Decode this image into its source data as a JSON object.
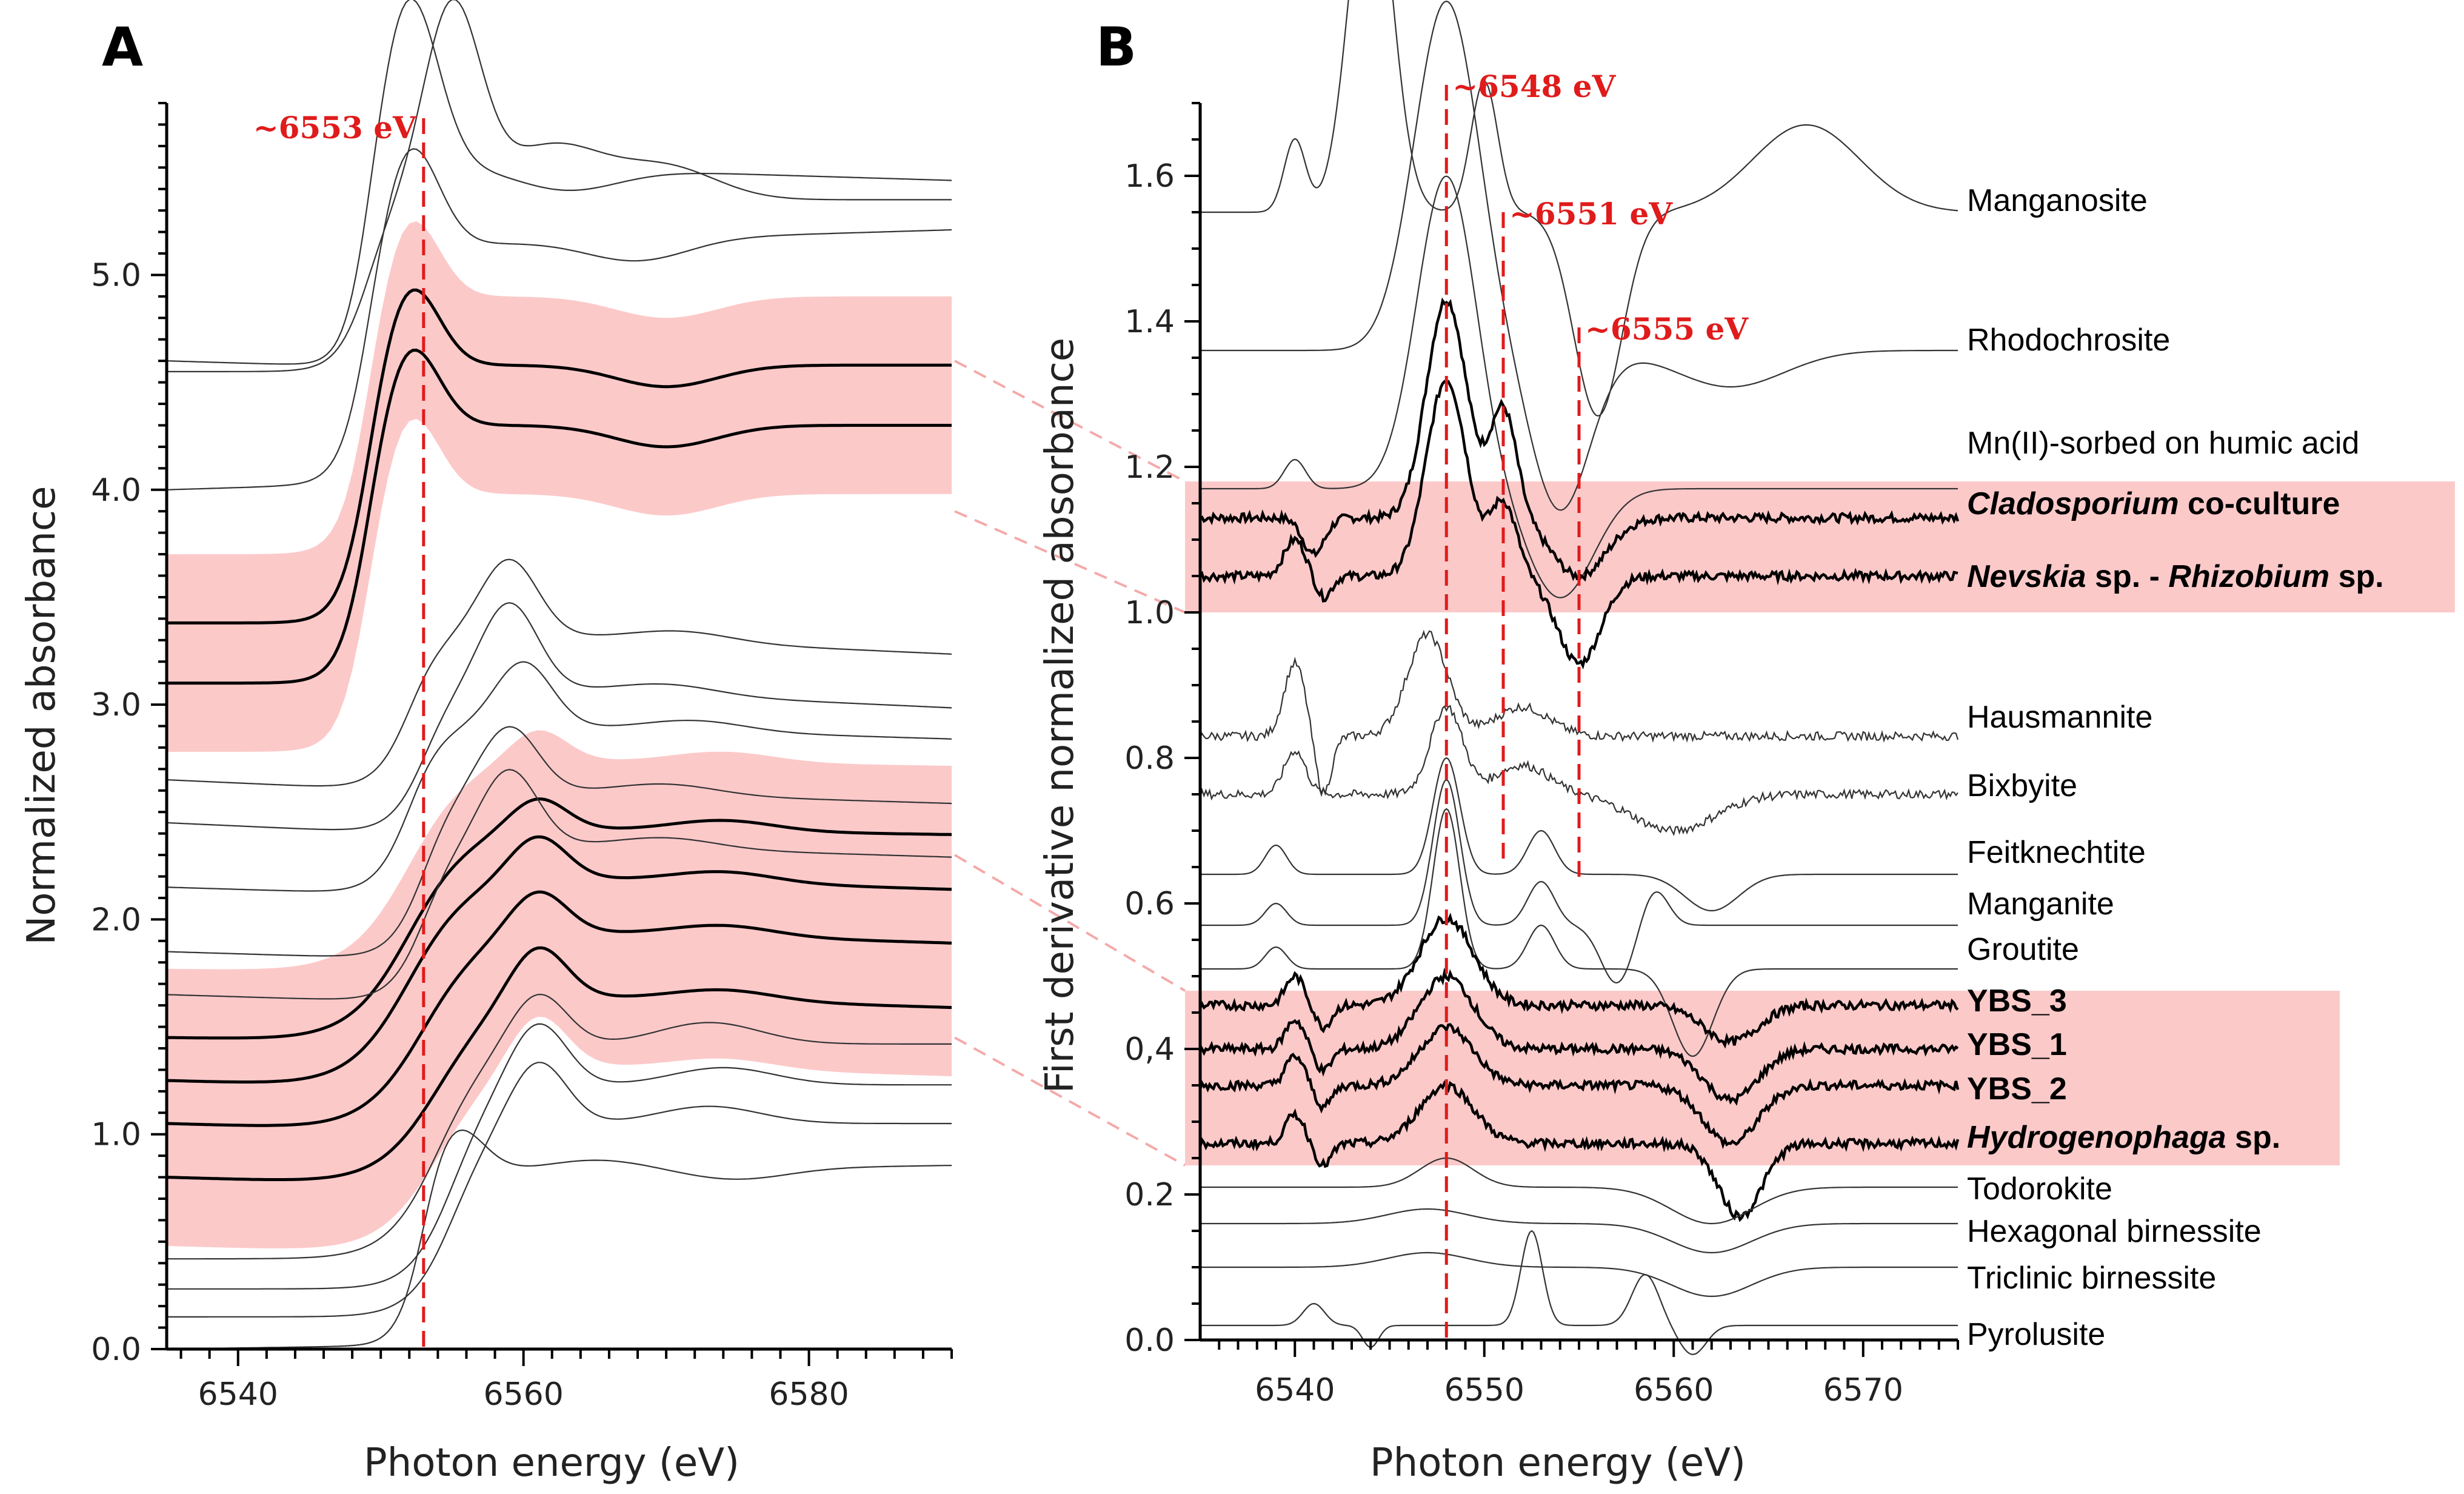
{
  "colors": {
    "band": "#fcc9c9",
    "reference": "#e01b1b",
    "connector": "#f4aaaa",
    "sample": "#000000",
    "standard": "#333333"
  },
  "chart_data": [
    {
      "panel": "A",
      "type": "line",
      "xlabel": "Photon energy (eV)",
      "ylabel": "Normalized absorbance",
      "xlim": [
        6535,
        6590
      ],
      "ylim": [
        0.0,
        5.8
      ],
      "xticks": [
        6540,
        6560,
        6580
      ],
      "xtick_labels": [
        "6540",
        "6560",
        "6580"
      ],
      "yticks": [
        0.0,
        1.0,
        2.0,
        3.0,
        4.0,
        5.0
      ],
      "ytick_labels": [
        "0.0",
        "1.0",
        "2.0",
        "3.0",
        "4.0",
        "5.0"
      ],
      "reference_line": {
        "x": 6553,
        "label": "~6553 eV"
      },
      "series": [
        {
          "name": "Pyrolusite",
          "kind": "standard",
          "offset": 0.0,
          "edge": 6553,
          "width": 1.5,
          "height": 0.8,
          "wl_pos": 6555,
          "wl": 0.25,
          "post": [
            [
              6565,
              0.05
            ],
            [
              6575,
              -0.05
            ]
          ],
          "slope": 0.001
        },
        {
          "name": "Triclinic birnessite",
          "kind": "standard",
          "offset": 0.15,
          "edge": 6555,
          "width": 2.5,
          "height": 0.9,
          "wl_pos": 6561,
          "wl": 0.3,
          "post": [
            [
              6573,
              0.08
            ]
          ],
          "slope": 0.0
        },
        {
          "name": "Hexagonal birnessite",
          "kind": "standard",
          "offset": 0.28,
          "edge": 6555,
          "width": 2.5,
          "height": 0.95,
          "wl_pos": 6561,
          "wl": 0.3,
          "post": [
            [
              6574,
              0.08
            ]
          ],
          "slope": 0.0
        },
        {
          "name": "Todorokite",
          "kind": "standard",
          "offset": 0.42,
          "edge": 6554,
          "width": 3.0,
          "height": 1.0,
          "wl_pos": 6561,
          "wl": 0.25,
          "post": [
            [
              6573,
              0.1
            ]
          ],
          "slope": 0.0
        },
        {
          "name": "Hydrogenophaga sp.",
          "kind": "sample",
          "offset": 0.8,
          "edge": 6554,
          "width": 3.5,
          "height": 0.9,
          "wl_pos": 6561,
          "wl": 0.25,
          "post": [
            [
              6574,
              0.05
            ]
          ],
          "slope": -0.002
        },
        {
          "name": "YBS_2",
          "kind": "sample",
          "offset": 1.05,
          "edge": 6553,
          "width": 3.5,
          "height": 0.95,
          "wl_pos": 6561,
          "wl": 0.2,
          "post": [
            [
              6574,
              0.05
            ]
          ],
          "slope": -0.002
        },
        {
          "name": "YBS_1",
          "kind": "sample",
          "offset": 1.25,
          "edge": 6552,
          "width": 3.5,
          "height": 1.0,
          "wl_pos": 6561,
          "wl": 0.2,
          "post": [
            [
              6574,
              0.05
            ]
          ],
          "slope": -0.002
        },
        {
          "name": "YBS_3",
          "kind": "sample",
          "offset": 1.45,
          "edge": 6552,
          "width": 3.5,
          "height": 1.0,
          "wl_pos": 6561,
          "wl": 0.15,
          "post": [
            [
              6574,
              0.05
            ]
          ],
          "slope": -0.001
        },
        {
          "name": "Groutite",
          "kind": "standard",
          "offset": 1.65,
          "edge": 6553,
          "width": 2.0,
          "height": 0.75,
          "wl_pos": 6559,
          "wl": 0.35,
          "post": [
            [
              6570,
              0.05
            ]
          ],
          "slope": -0.002
        },
        {
          "name": "Manganite",
          "kind": "standard",
          "offset": 1.85,
          "edge": 6553,
          "width": 2.0,
          "height": 0.8,
          "wl_pos": 6559,
          "wl": 0.3,
          "post": [
            [
              6570,
              0.05
            ]
          ],
          "slope": -0.002
        },
        {
          "name": "Feitknechtite",
          "kind": "standard",
          "offset": 2.15,
          "edge": 6552,
          "width": 2.0,
          "height": 0.8,
          "wl_pos": 6560,
          "wl": 0.3,
          "post": [
            [
              6572,
              0.05
            ]
          ],
          "slope": -0.002
        },
        {
          "name": "Bixbyite",
          "kind": "standard",
          "offset": 2.45,
          "edge": 6553,
          "width": 2.0,
          "height": 0.7,
          "wl_pos": 6559,
          "wl": 0.4,
          "post": [
            [
              6570,
              0.05
            ]
          ],
          "slope": -0.003
        },
        {
          "name": "Hausmannite",
          "kind": "standard",
          "offset": 2.65,
          "edge": 6552,
          "width": 2.0,
          "height": 0.75,
          "wl_pos": 6559,
          "wl": 0.35,
          "post": [
            [
              6571,
              0.05
            ]
          ],
          "slope": -0.003
        },
        {
          "name": "Nevskia sp. - Rhizobium sp.",
          "kind": "sample",
          "offset": 3.1,
          "edge": 6549,
          "width": 1.7,
          "height": 1.2,
          "wl_pos": 6552,
          "wl": 0.4,
          "post": [
            [
              6570,
              -0.1
            ]
          ],
          "slope": 0.0
        },
        {
          "name": "Cladosporium co-culture",
          "kind": "sample",
          "offset": 3.38,
          "edge": 6549,
          "width": 1.7,
          "height": 1.2,
          "wl_pos": 6552,
          "wl": 0.4,
          "post": [
            [
              6570,
              -0.1
            ]
          ],
          "slope": 0.0
        },
        {
          "name": "Mn(II)-sorbed on humic acid",
          "kind": "standard",
          "offset": 4.0,
          "edge": 6549,
          "width": 1.7,
          "height": 1.1,
          "wl_pos": 6552,
          "wl": 0.5,
          "post": [
            [
              6568,
              -0.1
            ]
          ],
          "slope": 0.002
        },
        {
          "name": "Rhodochrosite",
          "kind": "standard",
          "offset": 4.6,
          "edge": 6549,
          "width": 1.5,
          "height": 0.95,
          "wl_pos": 6552,
          "wl": 0.8,
          "post": [
            [
              6563,
              -0.1
            ]
          ],
          "slope": -0.002
        },
        {
          "name": "Manganosite",
          "kind": "standard",
          "offset": 4.55,
          "edge": 6549,
          "width": 1.8,
          "height": 0.8,
          "wl_pos": 6555,
          "wl": 0.9,
          "post": [
            [
              6562,
              0.25
            ],
            [
              6570,
              0.15
            ]
          ],
          "slope": 0.0
        }
      ],
      "bands": [
        {
          "group": "Cladosporium / Nevskia",
          "x_range": [
            6535,
            6590
          ]
        },
        {
          "group": "YBS / Hydrogenophaga",
          "x_range": [
            6535,
            6590
          ]
        }
      ]
    },
    {
      "panel": "B",
      "type": "line",
      "xlabel": "Photon energy (eV)",
      "ylabel": "First derivative normalized absorbance",
      "xlim": [
        6535,
        6575
      ],
      "ylim": [
        0.0,
        1.7
      ],
      "xticks": [
        6540,
        6550,
        6560,
        6570
      ],
      "xtick_labels": [
        "6540",
        "6550",
        "6560",
        "6570"
      ],
      "yticks": [
        0.0,
        0.2,
        0.4,
        0.6,
        0.8,
        1.0,
        1.2,
        1.4,
        1.6
      ],
      "ytick_labels": [
        "0.0",
        "0.2",
        "0,4",
        "0.6",
        "0.8",
        "1.0",
        "1.2",
        "1.4",
        "1.6"
      ],
      "reference_lines": [
        {
          "x": 6548,
          "label": "~6548 eV"
        },
        {
          "x": 6551,
          "label": "~6551 eV"
        },
        {
          "x": 6555,
          "label": "~6555 eV"
        }
      ],
      "series": [
        {
          "name": "Manganosite",
          "kind": "standard",
          "baseline": 1.55
        },
        {
          "name": "Rhodochrosite",
          "kind": "standard",
          "baseline": 1.36
        },
        {
          "name": "Mn(II)-sorbed on humic acid",
          "kind": "standard",
          "baseline": 1.17
        },
        {
          "name": "Cladosporium co-culture",
          "kind": "sample",
          "baseline": 1.13
        },
        {
          "name": "Nevskia sp. - Rhizobium sp.",
          "kind": "sample",
          "baseline": 1.05
        },
        {
          "name": "Hausmannite",
          "kind": "standard",
          "baseline": 0.83
        },
        {
          "name": "Bixbyite",
          "kind": "standard",
          "baseline": 0.75
        },
        {
          "name": "Feitknechtite",
          "kind": "standard",
          "baseline": 0.64
        },
        {
          "name": "Manganite",
          "kind": "standard",
          "baseline": 0.57
        },
        {
          "name": "Groutite",
          "kind": "standard",
          "baseline": 0.51
        },
        {
          "name": "YBS_3",
          "kind": "sample",
          "baseline": 0.46
        },
        {
          "name": "YBS_1",
          "kind": "sample",
          "baseline": 0.4
        },
        {
          "name": "YBS_2",
          "kind": "sample",
          "baseline": 0.35
        },
        {
          "name": "Hydrogenophaga sp.",
          "kind": "sample",
          "baseline": 0.27
        },
        {
          "name": "Todorokite",
          "kind": "standard",
          "baseline": 0.21
        },
        {
          "name": "Hexagonal birnessite",
          "kind": "standard",
          "baseline": 0.16
        },
        {
          "name": "Triclinic birnessite",
          "kind": "standard",
          "baseline": 0.1
        },
        {
          "name": "Pyrolusite",
          "kind": "standard",
          "baseline": 0.02
        }
      ],
      "bands": [
        {
          "group": "Cladosporium / Nevskia",
          "y_range": [
            1.0,
            1.18
          ]
        },
        {
          "group": "YBS / Hydrogenophaga",
          "y_range": [
            0.24,
            0.48
          ]
        }
      ]
    }
  ]
}
